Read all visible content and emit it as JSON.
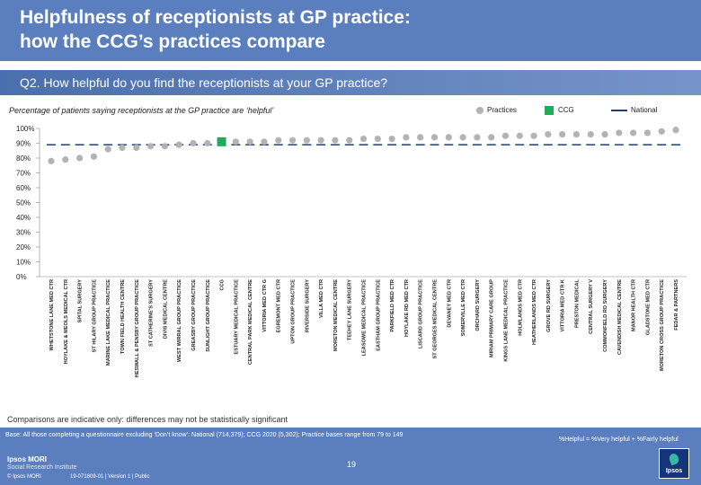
{
  "title_line1": "Helpfulness of receptionists at GP practice:",
  "title_line2": "how the CCG’s practices compare",
  "question": "Q2. How helpful do you find the receptionists at your GP practice?",
  "subtitle": "Percentage of patients saying receptionists at the GP practice are ‘helpful’",
  "legend": {
    "practices": "Practices",
    "ccg": "CCG",
    "national": "National"
  },
  "colors": {
    "header": "#5b7fbe",
    "practice": "#b3b3b3",
    "ccg": "#22a95a",
    "national": "#1f3d7a",
    "axis": "#222222"
  },
  "comparisons_note": "Comparisons are indicative only: differences may not be statistically significant",
  "base_text": "Base: All those completing a questionnaire excluding ‘Don’t know’: National (714,379); CCG 2020 (5,302); Practice bases range from 79 to 149",
  "helpful_definition": "%Helpful = %Very helpful + %Fairly helpful",
  "page_number": "19",
  "brand_name": "Ipsos MORI",
  "brand_sub": "Social Research Institute",
  "copyright": "© Ipsos MORI",
  "project": "19-071809-01 | Version 1 | Public",
  "logo_text": "Ipsos",
  "chart_data": {
    "type": "scatter",
    "yticks": [
      "0%",
      "10%",
      "20%",
      "30%",
      "40%",
      "50%",
      "60%",
      "70%",
      "80%",
      "90%",
      "100%"
    ],
    "ylim": [
      0,
      100
    ],
    "national": 89,
    "categories": [
      "WHETSTONE LANE MED CTR",
      "HOYLAKE & MEOLS MEDICAL CTR",
      "SPITAL SURGERY",
      "ST HILARY GROUP PRACTICE",
      "MARINE LAKE MEDICAL PRACTICE",
      "TOWN FIELD HEALTH CENTRE",
      "HESWALL & PENSBY GROUP PRACTICE",
      "ST CATHERINE'S SURGERY",
      "DIVIS MEDICAL CENTRE",
      "WEST WIRRAL GROUP PRACTICE",
      "GREASBY GROUP PRACTICE",
      "SUNLIGHT GROUP PRACTICE",
      "CCG",
      "ESTUARY MEDICAL PRACTICE",
      "CENTRAL PARK MEDICAL CENTRE",
      "VITTORIA MED CTR G",
      "EGREMONT MED CTR",
      "UPTON GROUP PRACTICE",
      "RIVERSIDE SURGERY",
      "VILLA MED CTR",
      "MORETON MEDICAL CENTRE",
      "TEEHEY LANE SURGERY",
      "LEASOWE MEDICAL PRACTICE",
      "EASTHAM GROUP PRACTICE",
      "PARKFIELD MED CTR",
      "HOYLAKE RD MED CTR",
      "LISCARD GROUP PRACTICE",
      "ST GEORGES MEDICAL CENTRE",
      "DEVANEY MED CTR",
      "SOMERVILLE MED CTR",
      "ORCHARD SURGERY",
      "MIRIAM PRIMARY CARE GROUP",
      "KINGS LANE MEDICAL PRACTICE",
      "HOLMLANDS MED CTR",
      "HEATHERLANDS MED CTR",
      "GROVE RD SURGERY",
      "VITTORIA MED CTR K",
      "PRESTON MEDICAL",
      "CENTRAL SURGERY V",
      "COMMONFIELD RD SURGERY",
      "CAVENDISH MEDICAL CENTRE",
      "MANOR HEALTH CTR",
      "GLADSTONE MED CTR",
      "MORETON CROSS GROUP PRACTICE",
      "FEDAR & PARTNERS"
    ],
    "values": [
      78,
      79,
      80,
      81,
      86,
      87,
      87,
      88,
      88,
      89,
      90,
      90,
      91,
      91,
      91,
      91,
      92,
      92,
      92,
      92,
      92,
      92,
      93,
      93,
      93,
      94,
      94,
      94,
      94,
      94,
      94,
      94,
      95,
      95,
      95,
      96,
      96,
      96,
      96,
      96,
      97,
      97,
      97,
      98,
      99
    ],
    "ccg_index": 12
  }
}
